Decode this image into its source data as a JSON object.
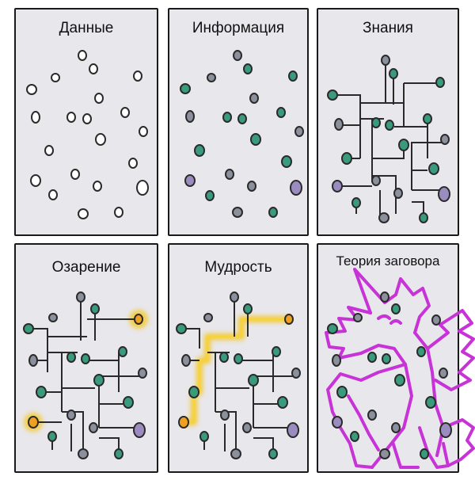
{
  "panels": [
    {
      "title": "Данные"
    },
    {
      "title": "Информация"
    },
    {
      "title": "Знания"
    },
    {
      "title": "Озарение"
    },
    {
      "title": "Мудрость"
    },
    {
      "title": "Теория заговора"
    }
  ],
  "colors": {
    "panel_bg": "#e8e7ec",
    "border": "#1a1a1a",
    "dot_white": "#ffffff",
    "dot_green": "#3a9a7c",
    "dot_purple": "#9b8cc0",
    "dot_gray": "#8c8f9c",
    "highlight": "#f5c518",
    "highlight_dot": "#f0a020",
    "unicorn": "#c733d6"
  }
}
